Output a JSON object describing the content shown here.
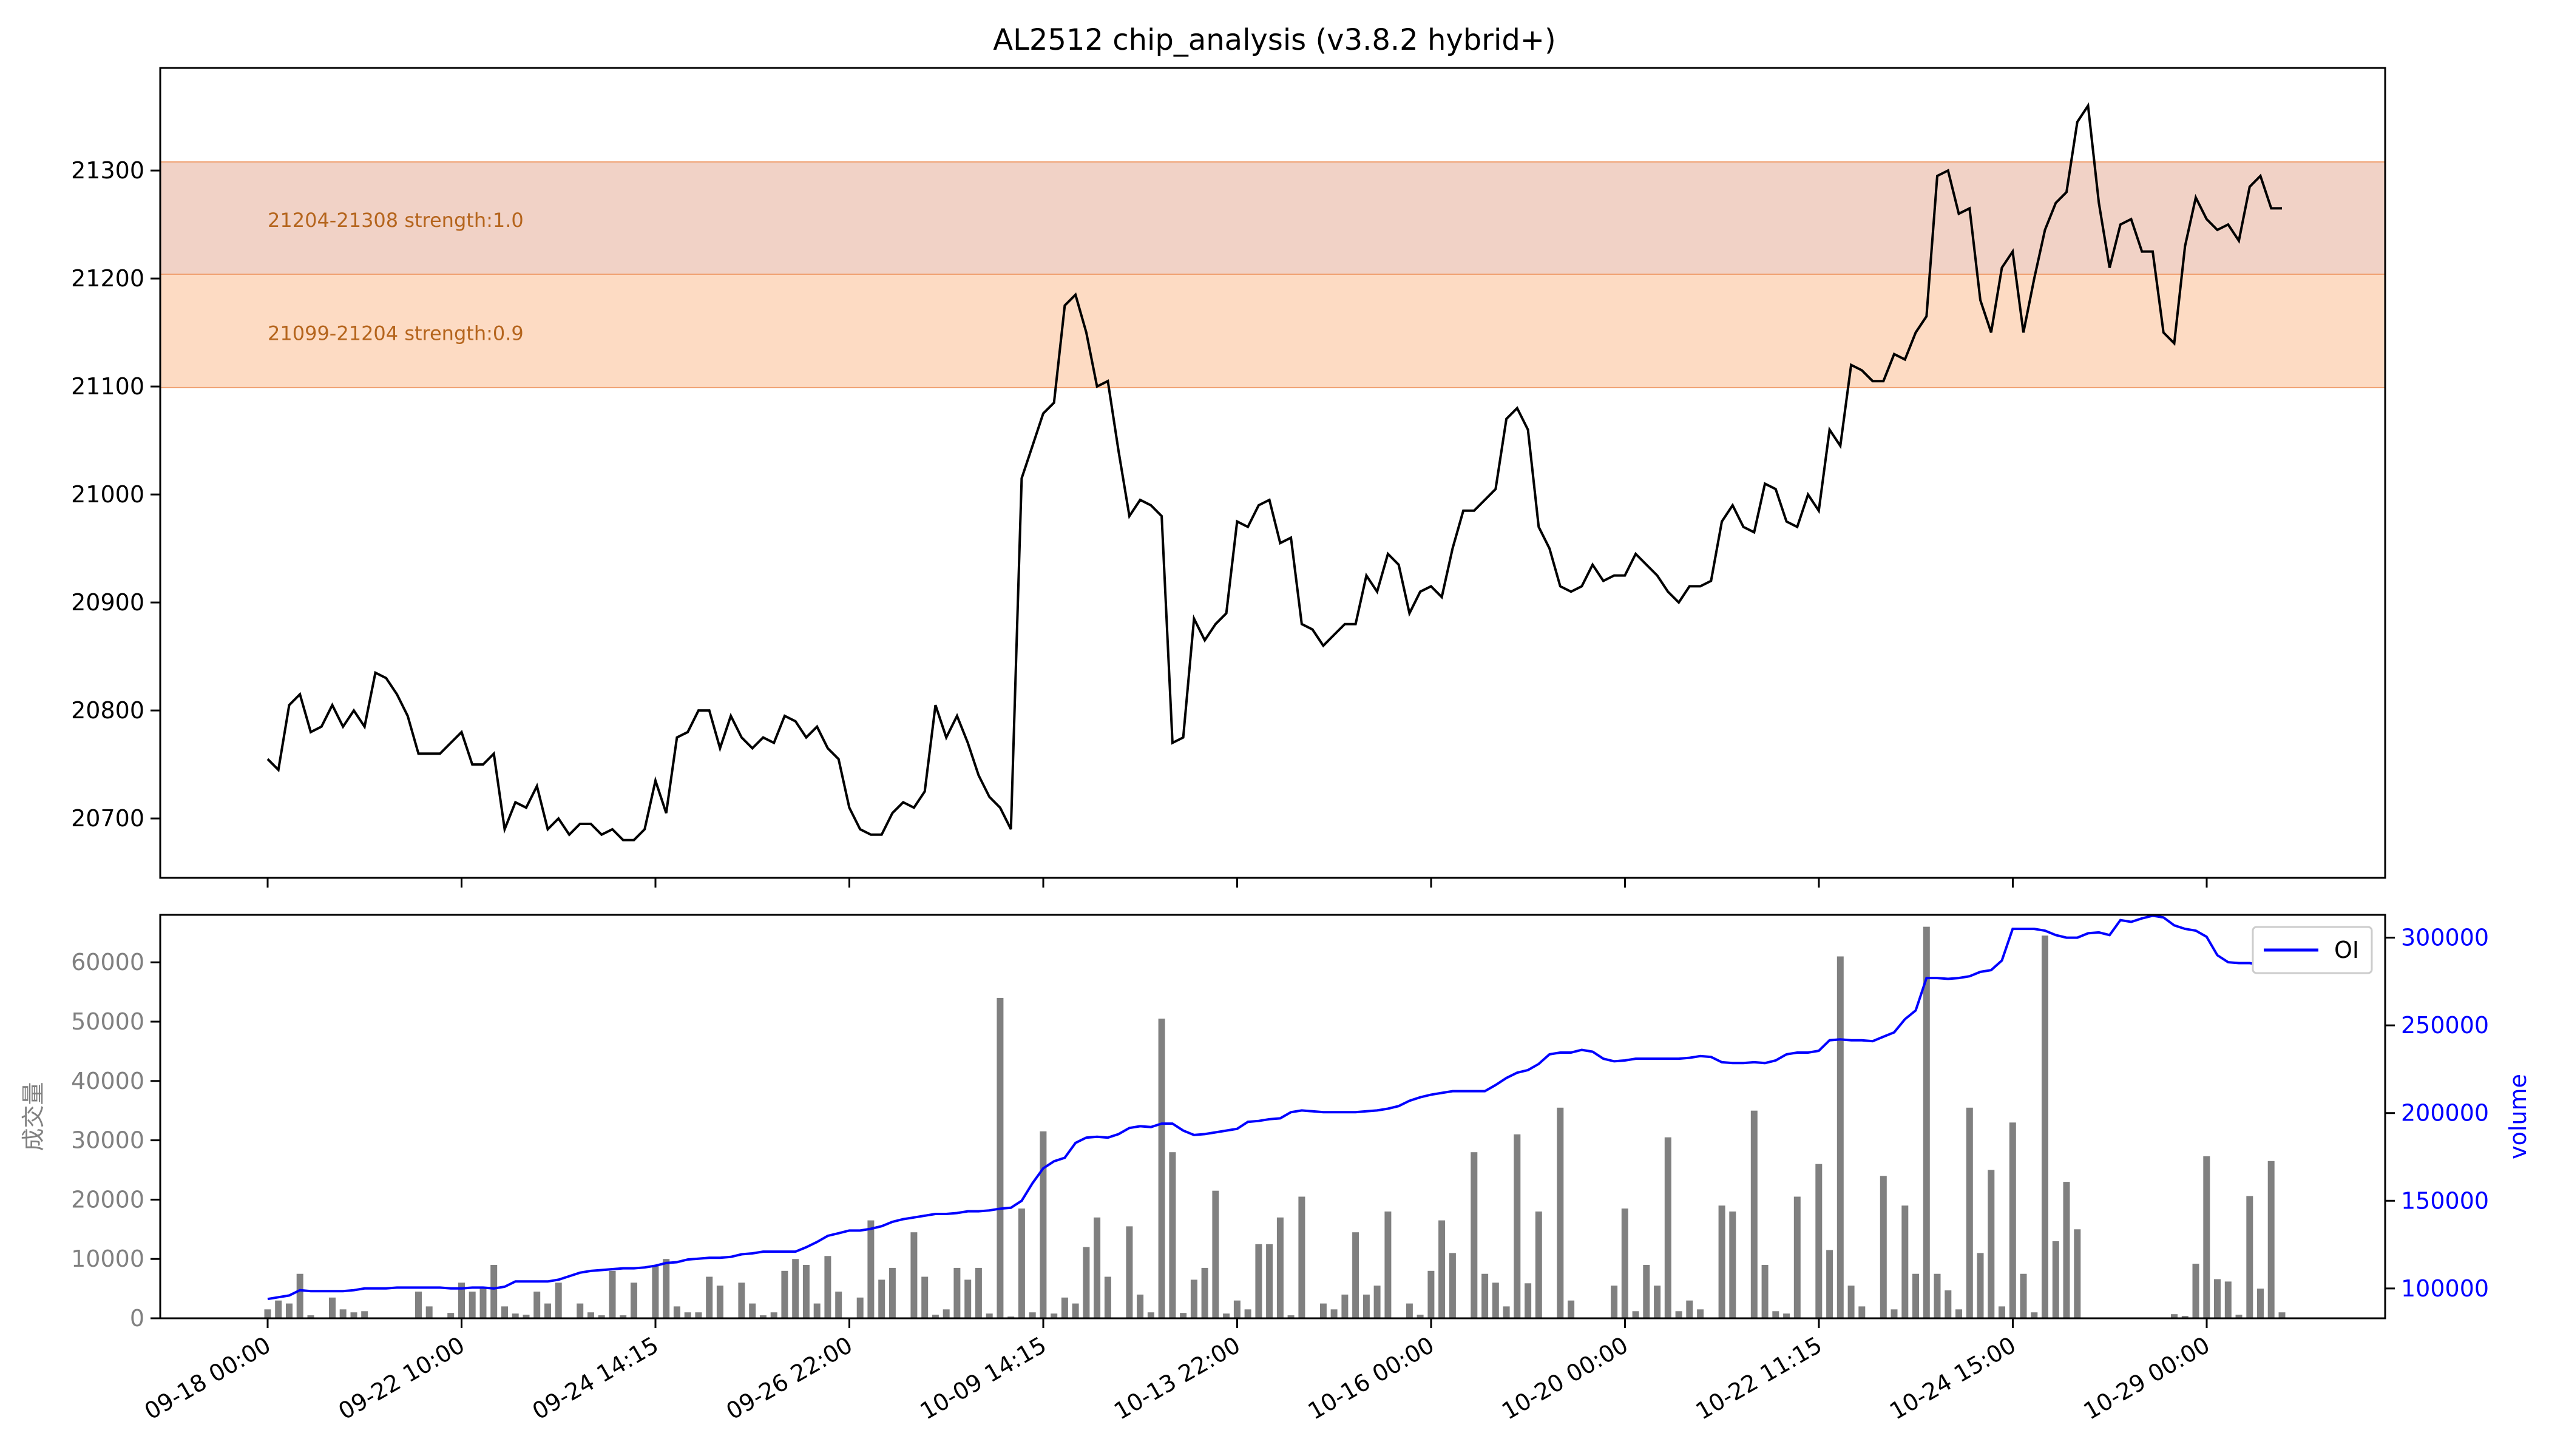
{
  "chart_data": [
    {
      "type": "line",
      "title": "AL2512 chip_analysis (v3.8.2 hybrid+)",
      "xlabel": "",
      "ylabel": "",
      "ylim": [
        20645,
        21395
      ],
      "yticks": [
        20700,
        20800,
        20900,
        21000,
        21100,
        21200,
        21300
      ],
      "bands": [
        {
          "low": 21204,
          "high": 21308,
          "label": "21204-21308 strength:1.0",
          "color": "#e8b4a0"
        },
        {
          "low": 21099,
          "high": 21204,
          "label": "21099-21204 strength:0.9",
          "color": "#fdd5b8"
        }
      ],
      "series": [
        {
          "color": "#000000",
          "values": [
            20755,
            20745,
            20805,
            20815,
            20780,
            20785,
            20805,
            20785,
            20800,
            20785,
            20835,
            20830,
            20815,
            20795,
            20760,
            20760,
            20760,
            20770,
            20780,
            20750,
            20750,
            20760,
            20690,
            20715,
            20710,
            20730,
            20690,
            20700,
            20685,
            20695,
            20695,
            20685,
            20690,
            20680,
            20680,
            20690,
            20735,
            20705,
            20775,
            20780,
            20800,
            20800,
            20765,
            20795,
            20775,
            20765,
            20775,
            20770,
            20795,
            20790,
            20775,
            20785,
            20765,
            20755,
            20710,
            20690,
            20685,
            20685,
            20705,
            20715,
            20710,
            20725,
            20805,
            20775,
            20795,
            20770,
            20740,
            20720,
            20710,
            20690,
            21015,
            21045,
            21075,
            21085,
            21175,
            21185,
            21150,
            21100,
            21105,
            21040,
            20980,
            20995,
            20990,
            20980,
            20770,
            20775,
            20885,
            20865,
            20880,
            20890,
            20975,
            20970,
            20990,
            20995,
            20955,
            20960,
            20880,
            20875,
            20860,
            20870,
            20880,
            20880,
            20925,
            20910,
            20945,
            20935,
            20890,
            20910,
            20915,
            20905,
            20950,
            20985,
            20985,
            20995,
            21005,
            21070,
            21080,
            21060,
            20970,
            20950,
            20915,
            20910,
            20915,
            20935,
            20920,
            20925,
            20925,
            20945,
            20935,
            20925,
            20910,
            20900,
            20915,
            20915,
            20920,
            20975,
            20990,
            20970,
            20965,
            21010,
            21005,
            20975,
            20970,
            21000,
            20985,
            21060,
            21045,
            21120,
            21115,
            21105,
            21105,
            21130,
            21125,
            21150,
            21165,
            21295,
            21300,
            21260,
            21265,
            21180,
            21150,
            21210,
            21225,
            21150,
            21200,
            21245,
            21270,
            21280,
            21345,
            21360,
            21270,
            21210,
            21250,
            21255,
            21225,
            21225,
            21150,
            21140,
            21230,
            21275,
            21255,
            21245,
            21250,
            21235,
            21285,
            21295,
            21265,
            21265
          ]
        }
      ]
    },
    {
      "type": "bar",
      "title": "",
      "xlabel": "",
      "ylabel": "成交量",
      "ylabel2": "volume",
      "ylim": [
        0,
        68000
      ],
      "ylim2": [
        83000,
        313000
      ],
      "yticks": [
        0,
        10000,
        20000,
        30000,
        40000,
        50000,
        60000
      ],
      "yticks2": [
        100000,
        150000,
        200000,
        250000,
        300000
      ],
      "x_tick_labels": [
        "09-18 00:00",
        "09-22 10:00",
        "09-24 14:15",
        "09-26 22:00",
        "10-09 14:15",
        "10-13 22:00",
        "10-16 00:00",
        "10-20 00:00",
        "10-22 11:15",
        "10-24 15:00",
        "10-29 00:00"
      ],
      "legend": {
        "position": "top-right",
        "entries": [
          "OI"
        ]
      },
      "series": [
        {
          "name": "volume_bars",
          "color": "#808080",
          "values": [
            1500,
            3000,
            2500,
            7500,
            500,
            0,
            3500,
            1500,
            1000,
            1200,
            0,
            0,
            0,
            0,
            4500,
            2000,
            0,
            900,
            6000,
            4500,
            5000,
            9000,
            2000,
            800,
            600,
            4500,
            2500,
            6000,
            0,
            2500,
            1000,
            500,
            8000,
            500,
            6000,
            0,
            9000,
            10000,
            2000,
            1000,
            1000,
            7000,
            5500,
            0,
            6000,
            2500,
            500,
            1000,
            8000,
            10000,
            9000,
            2500,
            10500,
            4500,
            0,
            3500,
            16500,
            6500,
            8500,
            0,
            14500,
            7000,
            600,
            1500,
            8500,
            6500,
            8500,
            800,
            54000,
            300,
            18500,
            1000,
            31500,
            800,
            3500,
            2500,
            12000,
            17000,
            7000,
            0,
            15500,
            4000,
            1000,
            50500,
            28000,
            900,
            6500,
            8500,
            21500,
            800,
            3000,
            1500,
            12500,
            12500,
            17000,
            500,
            20500,
            0,
            2500,
            1500,
            4000,
            14500,
            4000,
            5500,
            18000,
            0,
            2500,
            600,
            8000,
            16500,
            11000,
            0,
            28000,
            7500,
            6000,
            2000,
            31000,
            5900,
            18000,
            0,
            35500,
            3000,
            0,
            0,
            0,
            5500,
            18500,
            1200,
            9000,
            5500,
            30500,
            1200,
            3000,
            1500,
            0,
            19000,
            18000,
            0,
            35000,
            9000,
            1200,
            800,
            20500,
            0,
            26000,
            11500,
            61000,
            5500,
            2000,
            0,
            24000,
            1500,
            19000,
            7500,
            66000,
            7500,
            4700,
            1500,
            35500,
            11000,
            25000,
            2000,
            33000,
            7500,
            1000,
            64500,
            13000,
            23000,
            15000,
            0,
            0,
            0,
            0,
            0,
            0,
            0,
            0,
            700,
            400,
            9200,
            27300,
            6600,
            6200,
            600,
            20600,
            5000,
            26500,
            1000,
            0
          ]
        },
        {
          "name": "OI",
          "color": "#0000ff",
          "type": "line",
          "axis": "right",
          "values": [
            94000,
            95000,
            96000,
            99000,
            98500,
            98500,
            98500,
            98500,
            99000,
            100000,
            100000,
            100000,
            100500,
            100500,
            100500,
            100500,
            100500,
            100000,
            100000,
            100500,
            100500,
            100000,
            101000,
            104000,
            104000,
            104000,
            104000,
            105000,
            107000,
            109000,
            110000,
            110500,
            111000,
            111500,
            111500,
            112000,
            113000,
            114500,
            115000,
            116500,
            117000,
            117500,
            117500,
            118000,
            119500,
            120000,
            121000,
            121000,
            121000,
            121000,
            123500,
            126500,
            130000,
            131500,
            133000,
            133000,
            134000,
            135500,
            138000,
            139500,
            140500,
            141500,
            142500,
            142500,
            143000,
            144000,
            144000,
            144500,
            145500,
            146000,
            150000,
            160000,
            168500,
            172500,
            174500,
            183000,
            186000,
            186500,
            186000,
            188000,
            191500,
            192500,
            192000,
            194000,
            194000,
            190000,
            187500,
            188000,
            189000,
            190000,
            191000,
            195000,
            195500,
            196500,
            197000,
            200500,
            201500,
            201000,
            200500,
            200500,
            200500,
            200500,
            201000,
            201500,
            202500,
            204000,
            207000,
            209000,
            210500,
            211500,
            212500,
            212500,
            212500,
            212500,
            216000,
            220000,
            223000,
            224500,
            228000,
            233500,
            234500,
            234500,
            236000,
            235000,
            231000,
            229500,
            230000,
            231000,
            231000,
            231000,
            231000,
            231000,
            231500,
            232500,
            232000,
            229000,
            228500,
            228500,
            229000,
            228500,
            230000,
            233500,
            234500,
            234500,
            235500,
            241500,
            242000,
            241500,
            241500,
            241000,
            243500,
            246000,
            253500,
            258500,
            277000,
            277000,
            276500,
            277000,
            278000,
            280500,
            281500,
            287000,
            305000,
            305000,
            305000,
            304000,
            301500,
            300000,
            300000,
            302500,
            303000,
            301500,
            310000,
            309000,
            311000,
            312500,
            311500,
            307000,
            305000,
            304000,
            300500,
            290000,
            286000,
            285500,
            285500,
            284500,
            284500,
            284500,
            283500,
            282500,
            283000,
            283500,
            284000,
            284000
          ]
        }
      ]
    }
  ]
}
